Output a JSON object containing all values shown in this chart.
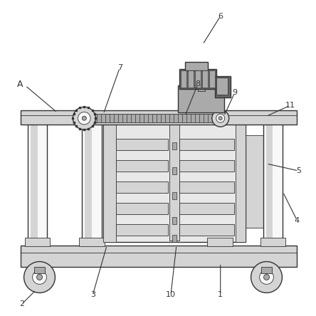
{
  "bg_color": "#ffffff",
  "line_color": "#333333",
  "fill_light": "#d4d4d4",
  "fill_medium": "#aaaaaa",
  "fill_dark": "#666666",
  "fill_white": "#f8f8f8",
  "fill_body": "#e8e8e8",
  "figsize": [
    4.44,
    4.44
  ],
  "dpi": 100
}
